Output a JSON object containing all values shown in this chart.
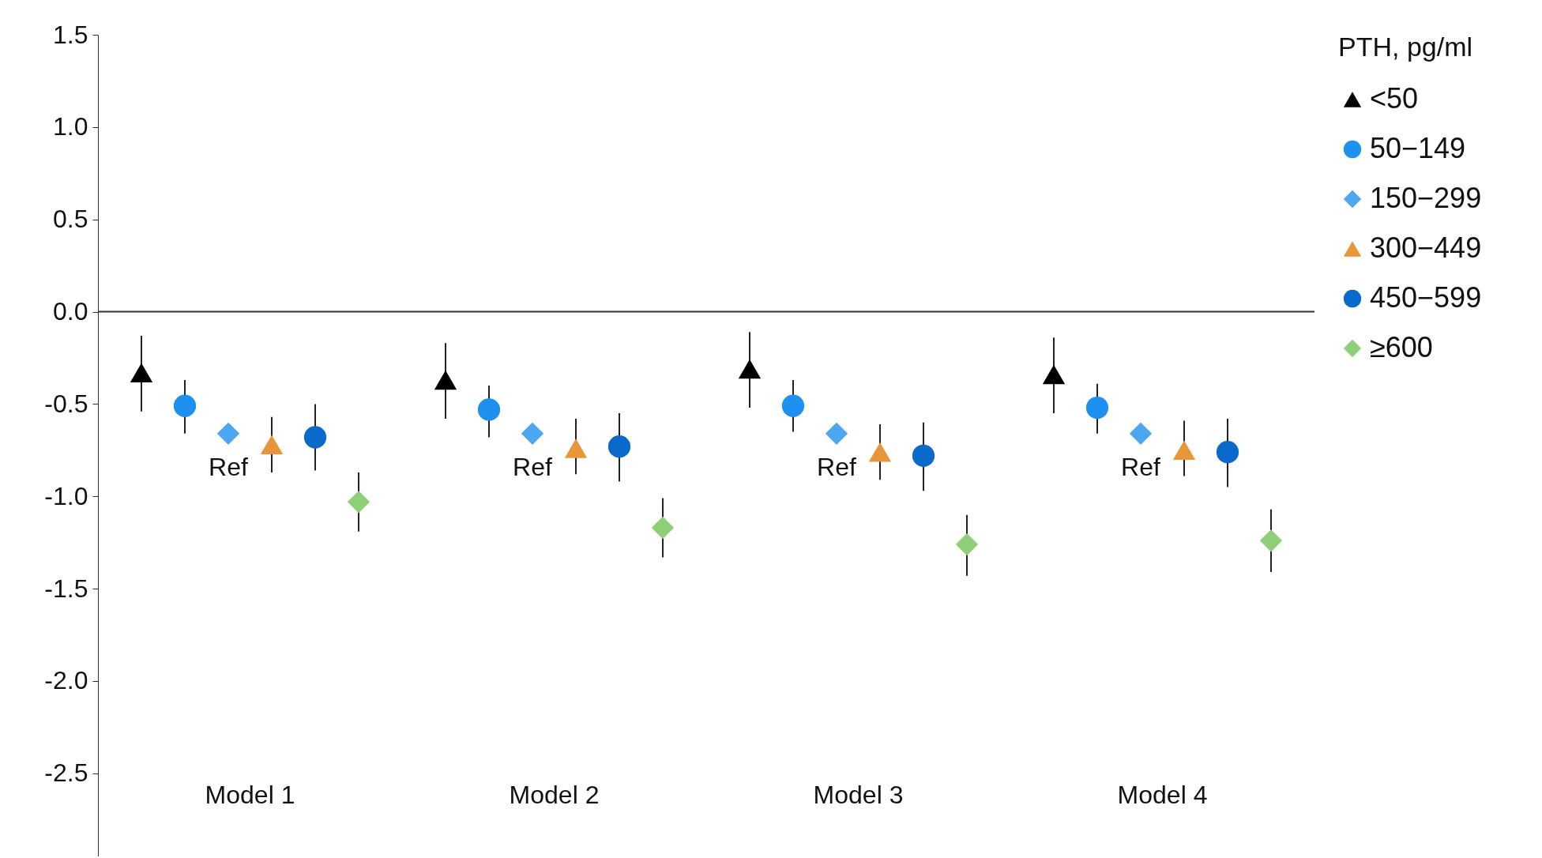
{
  "chart_data": {
    "type": "scatter",
    "categories": [
      "Model 1",
      "Model 2",
      "Model 3",
      "Model 4"
    ],
    "legend_title": "PTH, pg/ml",
    "legend": "right",
    "ylim": [
      -2.95,
      1.5
    ],
    "yticks": [
      {
        "value": -2.5,
        "label": "-2.5"
      },
      {
        "value": -2,
        "label": "-2.0"
      },
      {
        "value": -1.5,
        "label": "-1.5"
      },
      {
        "value": -1,
        "label": "-1.0"
      },
      {
        "value": -0.5,
        "label": "-0.5"
      },
      {
        "value": 0,
        "label": "0.0"
      },
      {
        "value": 0.5,
        "label": "0.5"
      },
      {
        "value": 1,
        "label": "1.0"
      },
      {
        "value": 1.5,
        "label": "1.5"
      }
    ],
    "grid": false,
    "ref_lines": [
      {
        "axis": "y",
        "value": 0,
        "color": "#333333"
      }
    ],
    "annotations": [
      "Ref",
      "Ref",
      "Ref",
      "Ref"
    ],
    "series": [
      {
        "name": "<50",
        "color": "#000000",
        "marker": "triangle",
        "values": [
          -0.33,
          -0.37,
          -0.31,
          -0.34
        ],
        "errors": [
          [
            -0.54,
            -0.13
          ],
          [
            -0.58,
            -0.17
          ],
          [
            -0.52,
            -0.11
          ],
          [
            -0.55,
            -0.14
          ]
        ]
      },
      {
        "name": "50−149",
        "color": "#1e90f0",
        "marker": "circle",
        "values": [
          -0.51,
          -0.53,
          -0.51,
          -0.52
        ],
        "errors": [
          [
            -0.66,
            -0.37
          ],
          [
            -0.68,
            -0.4
          ],
          [
            -0.65,
            -0.37
          ],
          [
            -0.66,
            -0.39
          ]
        ]
      },
      {
        "name": "150−299",
        "color": "#4da6f0",
        "marker": "diamond",
        "values": [
          -0.66,
          -0.66,
          -0.66,
          -0.66
        ]
      },
      {
        "name": "300−449",
        "color": "#e8963a",
        "marker": "triangle",
        "values": [
          -0.72,
          -0.74,
          -0.76,
          -0.75
        ],
        "errors": [
          [
            -0.87,
            -0.57
          ],
          [
            -0.88,
            -0.58
          ],
          [
            -0.91,
            -0.61
          ],
          [
            -0.89,
            -0.59
          ]
        ]
      },
      {
        "name": "450−599",
        "color": "#0a6acb",
        "marker": "circle",
        "values": [
          -0.68,
          -0.73,
          -0.78,
          -0.76
        ],
        "errors": [
          [
            -0.86,
            -0.5
          ],
          [
            -0.92,
            -0.55
          ],
          [
            -0.97,
            -0.6
          ],
          [
            -0.95,
            -0.58
          ]
        ]
      },
      {
        "name": "≥600",
        "color": "#8fcf7a",
        "marker": "diamond",
        "values": [
          -1.03,
          -1.17,
          -1.26,
          -1.24
        ],
        "errors": [
          [
            -1.19,
            -0.87
          ],
          [
            -1.33,
            -1.01
          ],
          [
            -1.43,
            -1.1
          ],
          [
            -1.41,
            -1.07
          ]
        ]
      }
    ]
  }
}
